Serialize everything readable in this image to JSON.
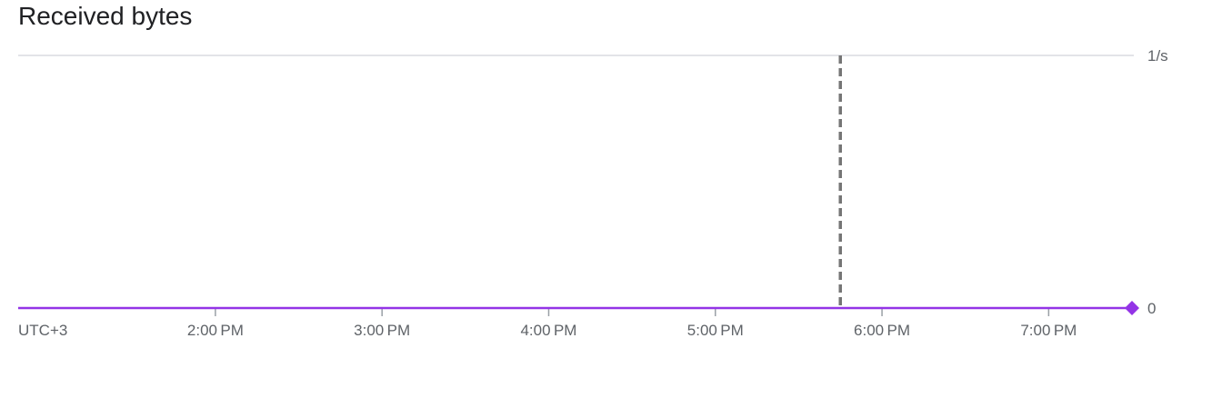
{
  "chart_data": {
    "type": "line",
    "title": "Received bytes",
    "timezone_label": "UTC+3",
    "x_ticks": [
      "2:00 PM",
      "3:00 PM",
      "4:00 PM",
      "5:00 PM",
      "6:00 PM",
      "7:00 PM"
    ],
    "x_range": [
      "12:49 PM",
      "7:30 PM"
    ],
    "y_ticks": [
      "0",
      "1/s"
    ],
    "ylim": [
      0,
      1
    ],
    "y_axis_position": "right",
    "series": [
      {
        "color": "#9334e6",
        "x": [
          "12:49 PM",
          "7:30 PM"
        ],
        "values": [
          0,
          0
        ]
      }
    ],
    "marker": {
      "shape": "diamond",
      "x": "7:30 PM",
      "value": 0
    },
    "current_time_line": {
      "x": "5:45 PM",
      "style": "dashed"
    },
    "colors": {
      "series": "#9334e6",
      "gridline": "#dadce0",
      "axis_text": "#5f6368",
      "current_time_line": "#757575"
    }
  }
}
